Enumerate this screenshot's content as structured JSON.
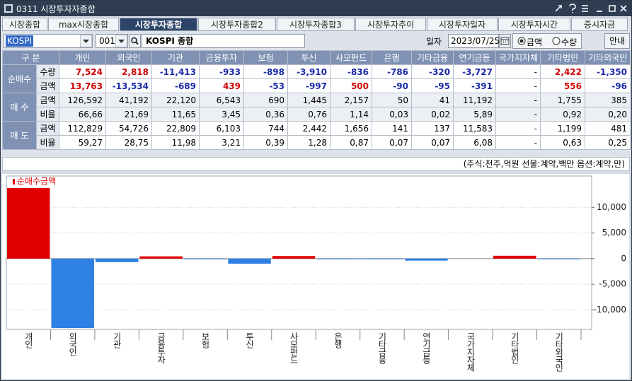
{
  "window": {
    "title": "0311 시장투자자종합"
  },
  "tabs": [
    "시장종합",
    "max시장종합",
    "시장투자종합",
    "시장투자종합2",
    "시장투자종합3",
    "시장투자추이",
    "시장투자일자",
    "시장투자시간",
    "증시자금"
  ],
  "controls": {
    "market": "KOSPI",
    "code": "001",
    "name": "KOSPI 종합",
    "date_label": "일자",
    "date": "2023/07/25",
    "radio": [
      "금액",
      "수량"
    ],
    "button": "안내"
  },
  "table": {
    "header": [
      "구 분",
      "개인",
      "외국인",
      "기관",
      "금융투자",
      "보험",
      "투신",
      "사모펀드",
      "은행",
      "기타금융",
      "연기금등",
      "국가지자체",
      "기타법인",
      "기타외국인"
    ],
    "groups": [
      {
        "label": "순매수",
        "rows": [
          {
            "label": "수량",
            "cells": [
              "7,524",
              "2,818",
              "-11,413",
              "-933",
              "-898",
              "-3,910",
              "-836",
              "-786",
              "-320",
              "-3,727",
              "-",
              "2,422",
              "-1,350"
            ]
          },
          {
            "label": "금액",
            "cells": [
              "13,763",
              "-13,534",
              "-689",
              "439",
              "-53",
              "-997",
              "500",
              "-90",
              "-95",
              "-391",
              "-",
              "556",
              "-96"
            ]
          }
        ]
      },
      {
        "label": "매 수",
        "rows": [
          {
            "label": "금액",
            "cells": [
              "126,592",
              "41,192",
              "22,120",
              "6,543",
              "690",
              "1,445",
              "2,157",
              "50",
              "41",
              "11,192",
              "-",
              "1,755",
              "385"
            ]
          },
          {
            "label": "비율",
            "cells": [
              "66,66",
              "21,69",
              "11,65",
              "3,45",
              "0,36",
              "0,76",
              "1,14",
              "0,03",
              "0,02",
              "5,89",
              "-",
              "0,92",
              "0,20"
            ]
          }
        ]
      },
      {
        "label": "매 도",
        "rows": [
          {
            "label": "금액",
            "cells": [
              "112,829",
              "54,726",
              "22,809",
              "6,103",
              "744",
              "2,442",
              "1,656",
              "141",
              "137",
              "11,583",
              "-",
              "1,199",
              "481"
            ]
          },
          {
            "label": "비율",
            "cells": [
              "59,27",
              "28,75",
              "11,98",
              "3,21",
              "0,39",
              "1,28",
              "0,87",
              "0,07",
              "0,07",
              "6,08",
              "-",
              "0,63",
              "0,25"
            ]
          }
        ]
      }
    ]
  },
  "unit_note": "(주식:천주,억원 선물:계약,백만 옵션:계약,만)",
  "chart_data": {
    "type": "bar",
    "categories": [
      "개인",
      "외국인",
      "기관",
      "금융투자",
      "보험",
      "투신",
      "사모펀드",
      "은행",
      "기타금융",
      "연기금등",
      "국가지자체",
      "기타법인",
      "기타외국인"
    ],
    "series": [
      {
        "name": "순매수금액",
        "color": "#e00000",
        "negative_color": "#2f80e4",
        "values": [
          13763,
          -13534,
          -689,
          439,
          -53,
          -997,
          500,
          -90,
          -95,
          -391,
          null,
          556,
          -96
        ]
      }
    ],
    "ylim": [
      -13800,
      16100
    ],
    "yticks": [
      {
        "value": -10000,
        "label": "-10,000"
      },
      {
        "value": -5000,
        "label": "-5,000"
      },
      0,
      {
        "value": 5000,
        "label": "5,000"
      },
      {
        "value": 10000,
        "label": "10,000"
      }
    ],
    "grid": true,
    "legend": "top-left"
  }
}
